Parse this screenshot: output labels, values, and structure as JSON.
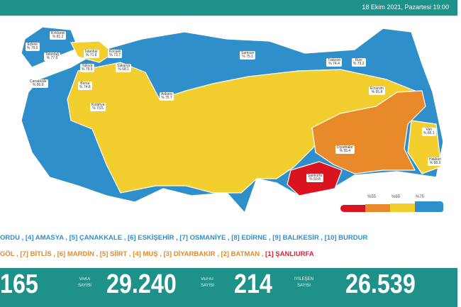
{
  "header": {
    "date": "18 Ekim 2021, Pazartesi 19:00"
  },
  "colors": {
    "teal": "#1e9189",
    "blue": "#2f8fca",
    "yellow": "#f2cf2e",
    "orange": "#e8892a",
    "red": "#d9141e"
  },
  "legend": {
    "thresholds": [
      "%55",
      "%65",
      "%75"
    ],
    "colors": [
      "#d9141e",
      "#e8892a",
      "#f2cf2e",
      "#2f8fca"
    ]
  },
  "provinces": [
    {
      "name": "Kırklareli",
      "value": "% 81.2"
    },
    {
      "name": "Edirne",
      "value": "% 79.5"
    },
    {
      "name": "Tekirdağ",
      "value": "% 77.6"
    },
    {
      "name": "İstanbul",
      "value": "% 71.8"
    },
    {
      "name": "Kocaeli",
      "value": "% 73.7"
    },
    {
      "name": "Yalova",
      "value": "% 79.5"
    },
    {
      "name": "Sakarya",
      "value": "% 68.1"
    },
    {
      "name": "Bursa",
      "value": "% 74.8"
    },
    {
      "name": "Çanakkale",
      "value": "% 80.8"
    },
    {
      "name": "Kütahya",
      "value": "% 73.5"
    },
    {
      "name": "Ankara",
      "value": "% 75.7"
    },
    {
      "name": "Samsun",
      "value": "% 75.1"
    },
    {
      "name": "Trabzon",
      "value": "% 74.4"
    },
    {
      "name": "Rize",
      "value": "% 73.2"
    },
    {
      "name": "Erzurum",
      "value": "% 65.8"
    },
    {
      "name": "Van",
      "value": "% 65.1"
    },
    {
      "name": "Diyarbakır",
      "value": "% 55.4"
    },
    {
      "name": "Şanlıurfa",
      "value": "% 50.8"
    },
    {
      "name": "Hakkari",
      "value": "% 68.3"
    }
  ],
  "rankings": {
    "line1": "ORDU , [4] AMASYA , [5] ÇANAKKALE , [6] ESKİŞEHİR , [7] OSMANİYE , [8] EDİRNE , [9] BALIKESİR , [10] BURDUR",
    "line2": "GÖL , [7] BİTLİS , [6] MARDİN , [5] SİİRT , [4] MUŞ , [3] DİYARBAKIR , [2] BATMAN , ",
    "line2_red": "[1] ŞANLIURFA"
  },
  "stats": {
    "first_value": "165",
    "vaka_label_1": "VAKA",
    "vaka_label_2": "SAYISI",
    "vaka_value": "29.240",
    "vefat_label_1": "VEFAT",
    "vefat_label_2": "SAYISI",
    "vefat_value": "214",
    "iyilesen_label_1": "İYİLEŞEN",
    "iyilesen_label_2": "SAYISI",
    "iyilesen_value": "26.539"
  }
}
